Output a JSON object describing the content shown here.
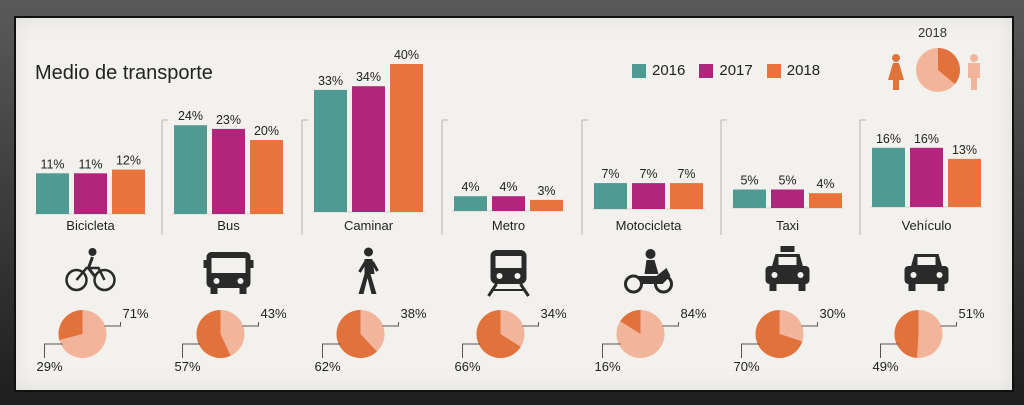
{
  "title": "Medio de transporte",
  "legend": [
    {
      "label": "2016",
      "color": "#4f9a92"
    },
    {
      "label": "2017",
      "color": "#b2257d"
    },
    {
      "label": "2018",
      "color": "#e8743b"
    }
  ],
  "gender_legend_year": "2018",
  "colors": {
    "pie_women": "#e2723b",
    "pie_men": "#f2b49a",
    "icon": "#2a2a2a"
  },
  "chart_data": {
    "type": "bar",
    "series": [
      {
        "name": "2016",
        "values": [
          11,
          24,
          33,
          4,
          7,
          5,
          16
        ]
      },
      {
        "name": "2017",
        "values": [
          11,
          23,
          34,
          4,
          7,
          5,
          16
        ]
      },
      {
        "name": "2018",
        "values": [
          12,
          20,
          40,
          3,
          7,
          4,
          13
        ]
      }
    ],
    "categories": [
      "Bicicleta",
      "Bus",
      "Caminar",
      "Metro",
      "Motocicleta",
      "Taxi",
      "Vehículo"
    ],
    "value_labels": [
      [
        "11%",
        "11%",
        "12%"
      ],
      [
        "24%",
        "23%",
        "20%"
      ],
      [
        "33%",
        "34%",
        "40%"
      ],
      [
        "4%",
        "4%",
        "3%"
      ],
      [
        "7%",
        "7%",
        "7%"
      ],
      [
        "5%",
        "5%",
        "4%"
      ],
      [
        "16%",
        "16%",
        "13%"
      ]
    ],
    "icons": [
      "bicycle-icon",
      "bus-icon",
      "pedestrian-icon",
      "metro-train-icon",
      "motorcycle-icon",
      "taxi-icon",
      "car-icon"
    ],
    "gender_split_2018": [
      {
        "women": 29,
        "men": 71,
        "women_label": "29%",
        "men_label": "71%"
      },
      {
        "women": 57,
        "men": 43,
        "women_label": "57%",
        "men_label": "43%"
      },
      {
        "women": 62,
        "men": 38,
        "women_label": "62%",
        "men_label": "38%"
      },
      {
        "women": 66,
        "men": 34,
        "women_label": "66%",
        "men_label": "34%"
      },
      {
        "women": 16,
        "men": 84,
        "women_label": "16%",
        "men_label": "84%"
      },
      {
        "women": 70,
        "men": 30,
        "women_label": "70%",
        "men_label": "30%"
      },
      {
        "women": 49,
        "men": 51,
        "women_label": "49%",
        "men_label": "51%"
      }
    ]
  }
}
